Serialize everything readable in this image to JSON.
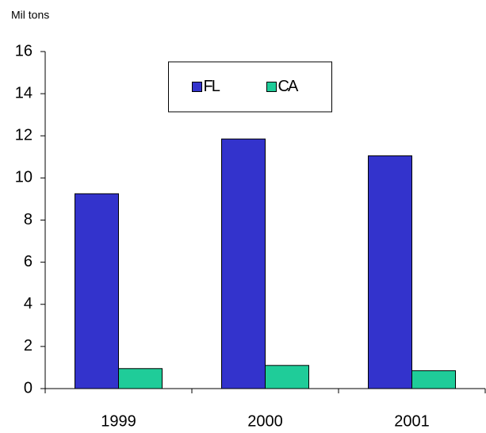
{
  "chart_data": {
    "type": "bar",
    "y_label": "Mil tons",
    "categories": [
      "1999",
      "2000",
      "2001"
    ],
    "series": [
      {
        "name": "FL",
        "color": "#3333cc",
        "values": [
          9.25,
          11.85,
          11.05
        ]
      },
      {
        "name": "CA",
        "color": "#1fcc99",
        "values": [
          0.95,
          1.1,
          0.85
        ]
      }
    ],
    "ylim": [
      0,
      16
    ],
    "yticks": [
      0,
      2,
      4,
      6,
      8,
      10,
      12,
      14,
      16
    ],
    "legend": "top"
  }
}
